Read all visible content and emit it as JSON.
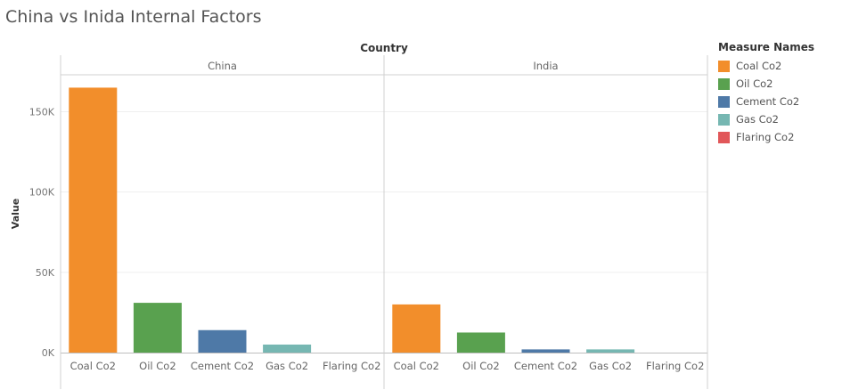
{
  "title": "China vs Inida Internal Factors",
  "chart_data": {
    "type": "bar",
    "column_header": "Country",
    "panels": [
      "China",
      "India"
    ],
    "categories": [
      "Coal Co2",
      "Oil Co2",
      "Cement Co2",
      "Gas Co2",
      "Flaring Co2"
    ],
    "series": [
      {
        "name": "China",
        "values": [
          165000,
          31000,
          14000,
          5000,
          0
        ]
      },
      {
        "name": "India",
        "values": [
          30000,
          12500,
          2000,
          2000,
          0
        ]
      }
    ],
    "ylabel": "Value",
    "yticks": [
      0,
      50000,
      100000,
      150000
    ],
    "ytick_labels": [
      "0K",
      "50K",
      "100K",
      "150K"
    ],
    "ylim": [
      0,
      173000
    ],
    "colors": [
      "#f28e2b",
      "#59a14f",
      "#4e79a7",
      "#76b7b2",
      "#e15759"
    ],
    "gridlines": true,
    "legend_placement": "right"
  },
  "legend": {
    "title": "Measure Names",
    "items": [
      {
        "label": "Coal Co2",
        "color": "#f28e2b"
      },
      {
        "label": "Oil Co2",
        "color": "#59a14f"
      },
      {
        "label": "Cement Co2",
        "color": "#4e79a7"
      },
      {
        "label": "Gas Co2",
        "color": "#76b7b2"
      },
      {
        "label": "Flaring Co2",
        "color": "#e15759"
      }
    ]
  }
}
